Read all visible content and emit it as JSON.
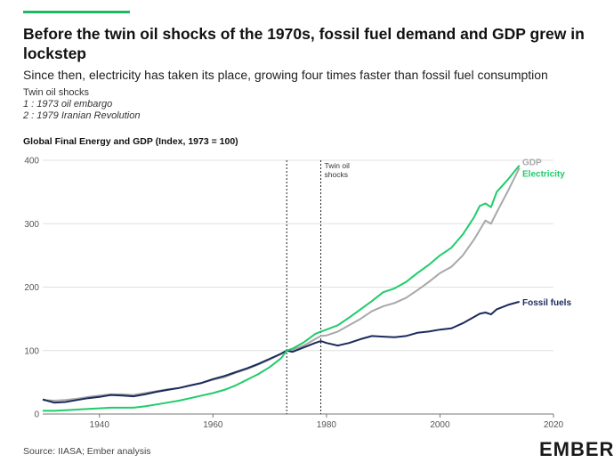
{
  "header": {
    "title": "Before the twin oil shocks of the 1970s, fossil fuel demand and GDP grew in lockstep",
    "subtitle": "Since then, electricity has taken its place, growing four times faster than fossil fuel consumption",
    "notes_title": "Twin oil shocks",
    "note_1": "1 : 1973 oil embargo",
    "note_2": "2 : 1979 Iranian Revolution"
  },
  "footer": {
    "source": "Source: IIASA; Ember analysis",
    "logo": "EMBER"
  },
  "colors": {
    "electricity": "#1fcc6a",
    "gdp": "#a8a8a8",
    "fossil": "#1b2a5c",
    "accent": "#1fb864"
  },
  "chart_data": {
    "type": "line",
    "title": "Global Final Energy and GDP (Index, 1973 = 100)",
    "xlabel": "",
    "ylabel": "",
    "xlim": [
      1930,
      2020
    ],
    "ylim": [
      0,
      400
    ],
    "xticks": [
      1940,
      1960,
      1980,
      2000,
      2020
    ],
    "yticks": [
      0,
      100,
      200,
      300,
      400
    ],
    "grid": true,
    "annotations": [
      {
        "x": 1973,
        "label": ""
      },
      {
        "x": 1979,
        "label": "Twin oil shocks"
      }
    ],
    "x": [
      1930,
      1932,
      1934,
      1936,
      1938,
      1940,
      1942,
      1944,
      1946,
      1948,
      1950,
      1952,
      1954,
      1956,
      1958,
      1960,
      1962,
      1964,
      1966,
      1968,
      1970,
      1972,
      1973,
      1974,
      1976,
      1978,
      1979,
      1980,
      1982,
      1984,
      1986,
      1988,
      1990,
      1992,
      1994,
      1996,
      1998,
      2000,
      2002,
      2004,
      2006,
      2007,
      2008,
      2009,
      2010,
      2012,
      2014
    ],
    "series": [
      {
        "name": "GDP",
        "color": "#a8a8a8",
        "values": [
          22,
          21,
          22,
          24,
          27,
          29,
          31,
          31,
          30,
          33,
          36,
          39,
          41,
          45,
          49,
          54,
          58,
          65,
          71,
          78,
          86,
          95,
          100,
          101,
          108,
          118,
          123,
          124,
          130,
          140,
          150,
          162,
          170,
          175,
          183,
          195,
          208,
          222,
          232,
          250,
          275,
          290,
          305,
          300,
          318,
          352,
          388
        ]
      },
      {
        "name": "Electricity",
        "color": "#1fcc6a",
        "values": [
          5,
          5,
          6,
          7,
          8,
          9,
          10,
          10,
          10,
          12,
          15,
          18,
          21,
          25,
          29,
          33,
          38,
          45,
          54,
          63,
          74,
          88,
          100,
          103,
          113,
          126,
          130,
          133,
          140,
          152,
          165,
          178,
          192,
          198,
          208,
          222,
          235,
          250,
          262,
          283,
          310,
          328,
          332,
          326,
          350,
          370,
          392
        ]
      },
      {
        "name": "Fossil fuels",
        "color": "#1b2a5c",
        "values": [
          23,
          18,
          19,
          22,
          25,
          27,
          30,
          29,
          28,
          31,
          35,
          38,
          41,
          45,
          49,
          55,
          60,
          66,
          72,
          79,
          87,
          95,
          100,
          98,
          105,
          112,
          115,
          112,
          108,
          112,
          118,
          123,
          122,
          121,
          123,
          128,
          130,
          133,
          135,
          143,
          153,
          158,
          160,
          157,
          165,
          172,
          177
        ]
      }
    ]
  }
}
